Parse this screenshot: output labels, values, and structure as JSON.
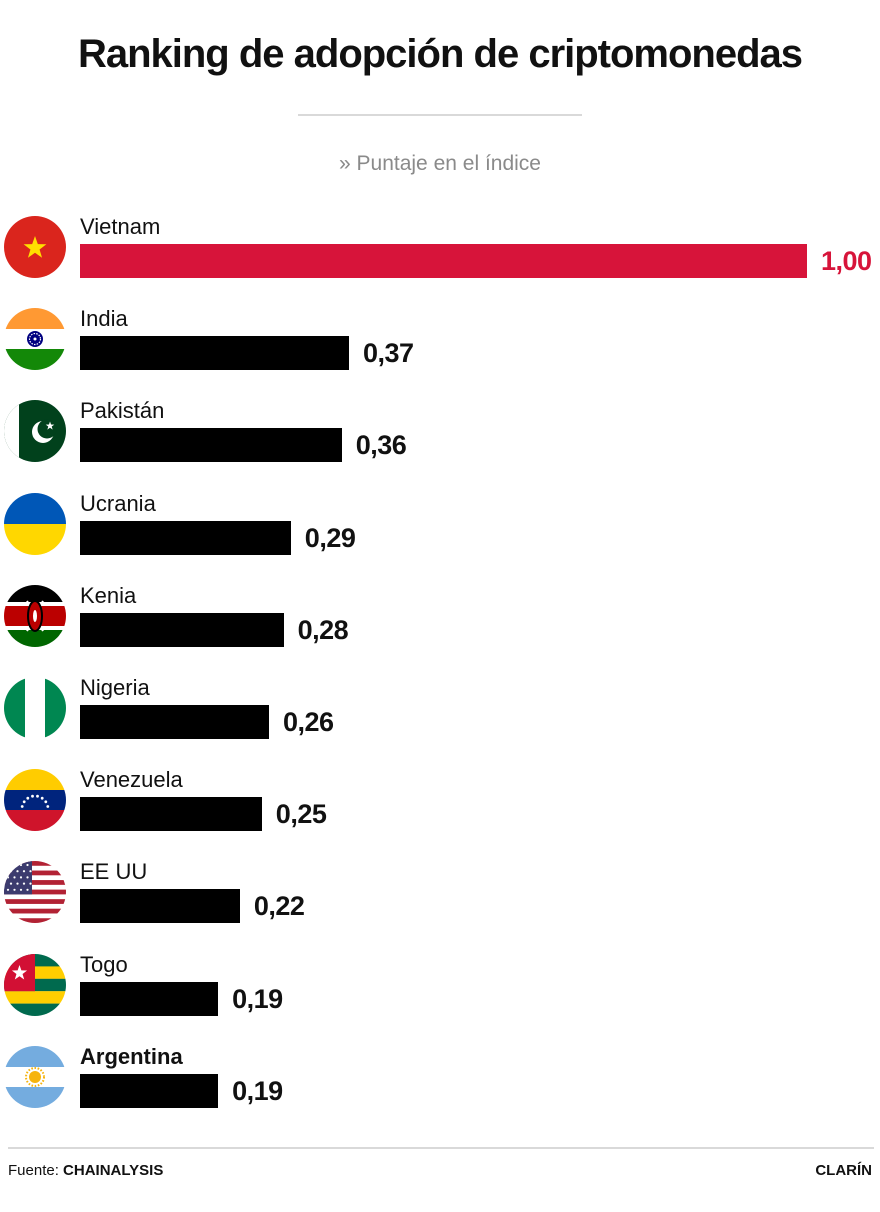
{
  "header": {
    "title": "Ranking de adopción de criptomonedas",
    "subtitle": "» Puntaje en el índice"
  },
  "colors": {
    "highlight": "#d7143a",
    "bar_default": "#000000"
  },
  "chart_data": {
    "type": "bar",
    "orientation": "horizontal",
    "title": "Ranking de adopción de criptomonedas",
    "subtitle": "» Puntaje en el índice",
    "xlim": [
      0,
      1
    ],
    "grid": false,
    "categories": [
      "Vietnam",
      "India",
      "Pakistán",
      "Ucrania",
      "Kenia",
      "Nigeria",
      "Venezuela",
      "EE UU",
      "Togo",
      "Argentina"
    ],
    "values": [
      1.0,
      0.37,
      0.36,
      0.29,
      0.28,
      0.26,
      0.25,
      0.22,
      0.19,
      0.19
    ],
    "value_labels": [
      "1,00",
      "0,37",
      "0,36",
      "0,29",
      "0,28",
      "0,26",
      "0,25",
      "0,22",
      "0,19",
      "0,19"
    ],
    "flag_icons": [
      "vietnam-flag-icon",
      "india-flag-icon",
      "pakistan-flag-icon",
      "ukraine-flag-icon",
      "kenya-flag-icon",
      "nigeria-flag-icon",
      "venezuela-flag-icon",
      "usa-flag-icon",
      "togo-flag-icon",
      "argentina-flag-icon"
    ],
    "highlighted_index": 0,
    "bold_label_index": 9
  },
  "footer": {
    "source_prefix": "Fuente:",
    "source_name": "CHAINALYSIS",
    "brand": "CLARÍN"
  }
}
